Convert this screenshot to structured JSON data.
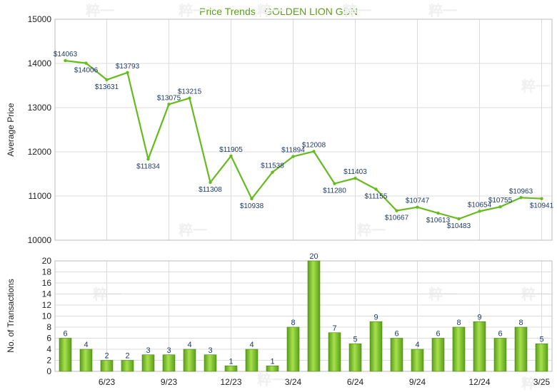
{
  "chart_data": [
    {
      "type": "line",
      "title": "Price Trends - GOLDEN LION GDN",
      "ylabel": "Average Price",
      "ylim": [
        10000,
        15000
      ],
      "yticks": [
        "10000",
        "11000",
        "12000",
        "13000",
        "14000",
        "15000"
      ],
      "x_ticks": [
        "6/23",
        "9/23",
        "12/23",
        "3/24",
        "6/24",
        "9/24",
        "12/24",
        "3/25"
      ],
      "grid": true,
      "series": [
        {
          "values": [
            14063,
            14006,
            13631,
            13793,
            11834,
            13075,
            13215,
            11308,
            11905,
            10938,
            11538,
            11894,
            12008,
            11280,
            11403,
            11155,
            10667,
            10747,
            10613,
            10483,
            10654,
            10755,
            10963,
            10941
          ],
          "labels": [
            "$14063",
            "$14006",
            "$13631",
            "$13793",
            "$11834",
            "$13075",
            "$13215",
            "$11308",
            "$11905",
            "$10938",
            "$11538",
            "$11894",
            "$12008",
            "$11280",
            "$11403",
            "$11155",
            "$10667",
            "$10747",
            "$10613",
            "$10483",
            "$10654",
            "$10755",
            "$10963",
            "$10941"
          ]
        }
      ],
      "line_color": "#66bb1e"
    },
    {
      "type": "bar",
      "ylabel": "No. of Transactions",
      "ylim": [
        0,
        20
      ],
      "yticks": [
        "0",
        "2",
        "4",
        "6",
        "8",
        "10",
        "12",
        "14",
        "16",
        "18",
        "20"
      ],
      "x_ticks": [
        "6/23",
        "9/23",
        "12/23",
        "3/24",
        "6/24",
        "9/24",
        "12/24",
        "3/25"
      ],
      "grid": true,
      "values": [
        6,
        4,
        2,
        2,
        3,
        3,
        4,
        3,
        1,
        4,
        1,
        8,
        20,
        7,
        5,
        9,
        6,
        4,
        6,
        8,
        9,
        6,
        8,
        5
      ],
      "bar_color": "#7cc62a"
    }
  ],
  "watermark": "粹一"
}
